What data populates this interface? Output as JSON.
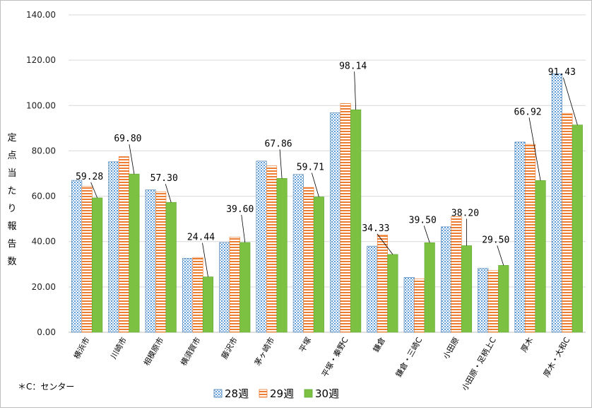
{
  "chart_data": {
    "type": "bar",
    "ylabel": "定点当たり報告数",
    "ylim": [
      0,
      140
    ],
    "yticks": [
      "0.00",
      "20.00",
      "40.00",
      "60.00",
      "80.00",
      "100.00",
      "120.00",
      "140.00"
    ],
    "grid": true,
    "legend_position": "bottom",
    "categories": [
      "横浜市",
      "川崎市",
      "相模原市",
      "横須賀市",
      "藤沢市",
      "茅ヶ崎市",
      "平塚",
      "平塚・秦野C",
      "鎌倉",
      "鎌倉・三崎C",
      "小田原",
      "小田原・足柄上C",
      "厚木",
      "厚木・大和C"
    ],
    "series": [
      {
        "name": "28週",
        "values": [
          67.0,
          75.2,
          62.8,
          32.6,
          39.6,
          75.5,
          69.6,
          96.8,
          38.0,
          24.2,
          46.5,
          28.2,
          83.9,
          114.0
        ],
        "color": "#9dc3e6",
        "pattern": "dots"
      },
      {
        "name": "29週",
        "values": [
          64.3,
          77.5,
          62.0,
          33.0,
          42.0,
          73.4,
          63.9,
          100.9,
          42.9,
          23.5,
          51.0,
          27.2,
          82.9,
          96.6
        ],
        "color": "#ed7d31",
        "pattern": "stripes"
      },
      {
        "name": "30週",
        "values": [
          59.28,
          69.8,
          57.3,
          24.44,
          39.6,
          67.86,
          59.71,
          98.14,
          34.33,
          39.5,
          38.2,
          29.5,
          66.92,
          91.43
        ],
        "color": "#7dc142",
        "pattern": "solid"
      }
    ],
    "data_labels": [
      "59.28",
      "69.80",
      "57.30",
      "24.44",
      "39.60",
      "67.86",
      "59.71",
      "98.14",
      "34.33",
      "39.50",
      "38.20",
      "29.50",
      "66.92",
      "91.43"
    ],
    "annotation": "＊C：センター"
  }
}
